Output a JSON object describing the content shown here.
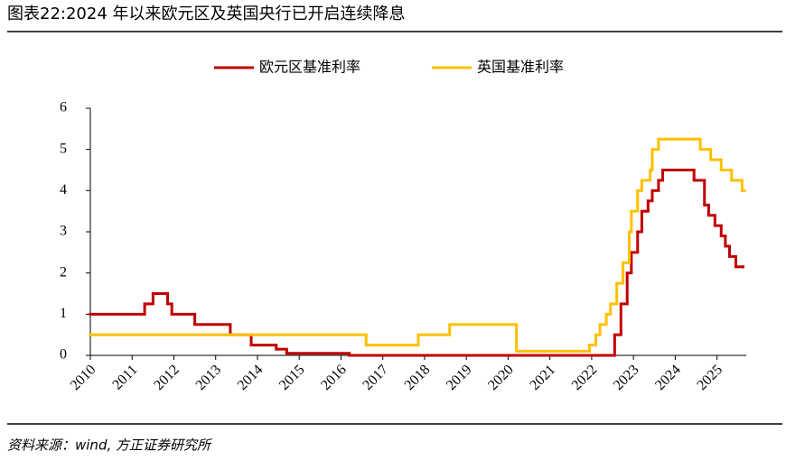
{
  "chart_data": {
    "type": "line",
    "title": "图表22:2024 年以来欧元区及英国央行已开启连续降息",
    "source": "资料来源：wind, 方正证券研究所",
    "step": "post",
    "xlim": [
      2010,
      2025.7
    ],
    "xticks": [
      2010,
      2011,
      2012,
      2013,
      2014,
      2015,
      2016,
      2017,
      2018,
      2019,
      2020,
      2021,
      2022,
      2023,
      2024,
      2025
    ],
    "ylim": [
      0,
      6
    ],
    "yticks": [
      0,
      1,
      2,
      3,
      4,
      5,
      6
    ],
    "grid": false,
    "legend": "top",
    "series": [
      {
        "name": "欧元区基准利率",
        "color": "#c00000",
        "x": [
          2010,
          2011.3,
          2011.5,
          2011.85,
          2011.95,
          2012.5,
          2013.35,
          2013.85,
          2014.45,
          2014.7,
          2016.2,
          2022.55,
          2022.7,
          2022.85,
          2022.95,
          2023.1,
          2023.2,
          2023.35,
          2023.45,
          2023.6,
          2023.7,
          2024.45,
          2024.7,
          2024.8,
          2024.95,
          2025.1,
          2025.2,
          2025.3,
          2025.45,
          2025.62
        ],
        "values": [
          1,
          1.25,
          1.5,
          1.25,
          1,
          0.75,
          0.5,
          0.25,
          0.15,
          0.05,
          0,
          0.5,
          1.25,
          2,
          2.5,
          3,
          3.5,
          3.75,
          4,
          4.25,
          4.5,
          4.25,
          3.65,
          3.4,
          3.15,
          2.9,
          2.65,
          2.4,
          2.15,
          2.15
        ]
      },
      {
        "name": "英国基准利率",
        "color": "#ffc000",
        "x": [
          2010,
          2016.6,
          2017.85,
          2018.6,
          2020.2,
          2021.95,
          2022.1,
          2022.2,
          2022.35,
          2022.45,
          2022.6,
          2022.75,
          2022.9,
          2022.95,
          2023.1,
          2023.2,
          2023.4,
          2023.45,
          2023.6,
          2024.6,
          2024.85,
          2025.1,
          2025.35,
          2025.6,
          2025.65
        ],
        "values": [
          0.5,
          0.25,
          0.5,
          0.75,
          0.1,
          0.25,
          0.5,
          0.75,
          1,
          1.25,
          1.75,
          2.25,
          3,
          3.5,
          4,
          4.25,
          4.5,
          5,
          5.25,
          5,
          4.75,
          4.5,
          4.25,
          4,
          4
        ]
      }
    ]
  }
}
